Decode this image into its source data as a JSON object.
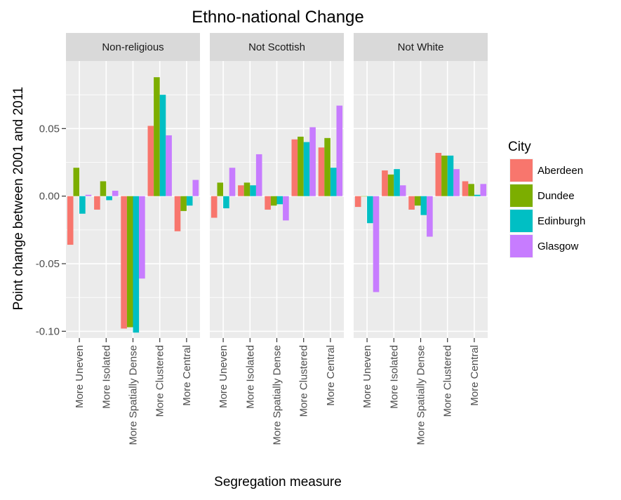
{
  "chart_data": {
    "type": "bar",
    "title": "Ethno-national Change",
    "xlabel": "Segregation measure",
    "ylabel": "Point change between 2001 and 2011",
    "ylim": [
      -0.105,
      0.1
    ],
    "yticks": [
      -0.1,
      -0.05,
      0.0,
      0.05
    ],
    "ytick_labels": [
      "-0.10",
      "-0.05",
      "0.00",
      "0.05"
    ],
    "grid": true,
    "legend": {
      "title": "City",
      "position": "right",
      "entries": [
        "Aberdeen",
        "Dundee",
        "Edinburgh",
        "Glasgow"
      ]
    },
    "colors": {
      "Aberdeen": "#F8766D",
      "Dundee": "#7CAE00",
      "Edinburgh": "#00BFC4",
      "Glasgow": "#C77CFF"
    },
    "categories": [
      "More Uneven",
      "More Isolated",
      "More Spatially Dense",
      "More Clustered",
      "More Central"
    ],
    "panels": [
      {
        "name": "Non-religious",
        "series": [
          {
            "name": "Aberdeen",
            "values": [
              -0.036,
              -0.01,
              -0.098,
              0.052,
              -0.026
            ]
          },
          {
            "name": "Dundee",
            "values": [
              0.021,
              0.011,
              -0.097,
              0.088,
              -0.011
            ]
          },
          {
            "name": "Edinburgh",
            "values": [
              -0.013,
              -0.003,
              -0.101,
              0.075,
              -0.007
            ]
          },
          {
            "name": "Glasgow",
            "values": [
              0.001,
              0.004,
              -0.061,
              0.045,
              0.012
            ]
          }
        ]
      },
      {
        "name": "Not Scottish",
        "series": [
          {
            "name": "Aberdeen",
            "values": [
              -0.016,
              0.008,
              -0.01,
              0.042,
              0.036
            ]
          },
          {
            "name": "Dundee",
            "values": [
              0.01,
              0.01,
              -0.007,
              0.044,
              0.043
            ]
          },
          {
            "name": "Edinburgh",
            "values": [
              -0.009,
              0.008,
              -0.006,
              0.04,
              0.021
            ]
          },
          {
            "name": "Glasgow",
            "values": [
              0.021,
              0.031,
              -0.018,
              0.051,
              0.067
            ]
          }
        ]
      },
      {
        "name": "Not White",
        "series": [
          {
            "name": "Aberdeen",
            "values": [
              -0.008,
              0.019,
              -0.01,
              0.032,
              0.011
            ]
          },
          {
            "name": "Dundee",
            "values": [
              0.0,
              0.016,
              -0.007,
              0.03,
              0.009
            ]
          },
          {
            "name": "Edinburgh",
            "values": [
              -0.02,
              0.02,
              -0.014,
              0.03,
              0.001
            ]
          },
          {
            "name": "Glasgow",
            "values": [
              -0.071,
              0.008,
              -0.03,
              0.02,
              0.009
            ]
          }
        ]
      }
    ]
  }
}
